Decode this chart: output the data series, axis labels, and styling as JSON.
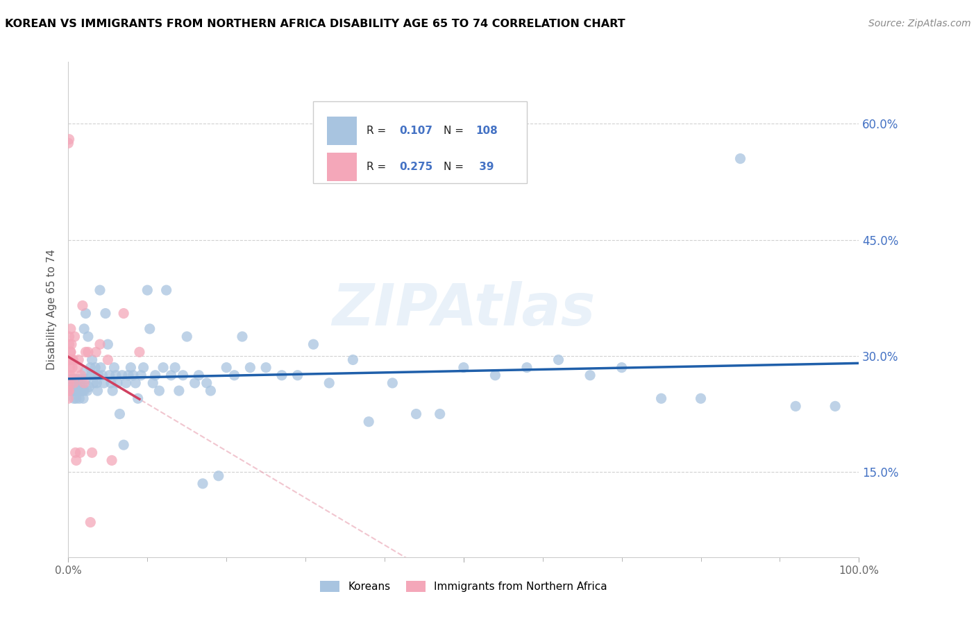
{
  "title": "KOREAN VS IMMIGRANTS FROM NORTHERN AFRICA DISABILITY AGE 65 TO 74 CORRELATION CHART",
  "source": "Source: ZipAtlas.com",
  "ylabel": "Disability Age 65 to 74",
  "xmin": 0.0,
  "xmax": 1.0,
  "ymin": 0.04,
  "ymax": 0.68,
  "yticks": [
    0.15,
    0.3,
    0.45,
    0.6
  ],
  "yticklabels": [
    "15.0%",
    "30.0%",
    "45.0%",
    "60.0%"
  ],
  "watermark": "ZIPAtlas",
  "color_korean": "#a8c4e0",
  "color_nafrica": "#f4a7b9",
  "trendline_korean_color": "#1f5faa",
  "trendline_nafrica_color": "#d04060",
  "trendline_nafrica_dash_color": "#e8a0b0",
  "label_korean": "Koreans",
  "label_nafrica": "Immigrants from Northern Africa",
  "korean_x": [
    0.002,
    0.003,
    0.004,
    0.005,
    0.006,
    0.007,
    0.008,
    0.009,
    0.01,
    0.011,
    0.012,
    0.013,
    0.014,
    0.015,
    0.016,
    0.017,
    0.018,
    0.019,
    0.02,
    0.021,
    0.022,
    0.022,
    0.024,
    0.025,
    0.026,
    0.028,
    0.029,
    0.03,
    0.032,
    0.033,
    0.034,
    0.036,
    0.037,
    0.038,
    0.04,
    0.041,
    0.043,
    0.045,
    0.047,
    0.05,
    0.052,
    0.054,
    0.056,
    0.058,
    0.06,
    0.062,
    0.065,
    0.068,
    0.07,
    0.073,
    0.076,
    0.079,
    0.082,
    0.085,
    0.088,
    0.092,
    0.095,
    0.1,
    0.103,
    0.107,
    0.11,
    0.115,
    0.12,
    0.124,
    0.13,
    0.135,
    0.14,
    0.145,
    0.15,
    0.16,
    0.165,
    0.17,
    0.175,
    0.18,
    0.19,
    0.2,
    0.21,
    0.22,
    0.23,
    0.25,
    0.27,
    0.29,
    0.31,
    0.33,
    0.36,
    0.38,
    0.41,
    0.44,
    0.47,
    0.5,
    0.54,
    0.58,
    0.62,
    0.66,
    0.7,
    0.75,
    0.8,
    0.85,
    0.92,
    0.97,
    0.003,
    0.005,
    0.007,
    0.009,
    0.012,
    0.015,
    0.018,
    0.02
  ],
  "korean_y": [
    0.265,
    0.255,
    0.27,
    0.26,
    0.255,
    0.245,
    0.27,
    0.255,
    0.245,
    0.26,
    0.27,
    0.255,
    0.245,
    0.26,
    0.255,
    0.27,
    0.26,
    0.245,
    0.335,
    0.28,
    0.27,
    0.355,
    0.255,
    0.325,
    0.26,
    0.285,
    0.275,
    0.295,
    0.265,
    0.275,
    0.285,
    0.265,
    0.255,
    0.275,
    0.385,
    0.285,
    0.275,
    0.265,
    0.355,
    0.315,
    0.275,
    0.265,
    0.255,
    0.285,
    0.275,
    0.265,
    0.225,
    0.275,
    0.185,
    0.265,
    0.275,
    0.285,
    0.275,
    0.265,
    0.245,
    0.275,
    0.285,
    0.385,
    0.335,
    0.265,
    0.275,
    0.255,
    0.285,
    0.385,
    0.275,
    0.285,
    0.255,
    0.275,
    0.325,
    0.265,
    0.275,
    0.135,
    0.265,
    0.255,
    0.145,
    0.285,
    0.275,
    0.325,
    0.285,
    0.285,
    0.275,
    0.275,
    0.315,
    0.265,
    0.295,
    0.215,
    0.265,
    0.225,
    0.225,
    0.285,
    0.275,
    0.285,
    0.295,
    0.275,
    0.285,
    0.245,
    0.245,
    0.555,
    0.235,
    0.235,
    0.255,
    0.255,
    0.255,
    0.255,
    0.255,
    0.255,
    0.255,
    0.255
  ],
  "nafrica_x": [
    0.001,
    0.001,
    0.001,
    0.002,
    0.002,
    0.003,
    0.003,
    0.004,
    0.004,
    0.005,
    0.005,
    0.006,
    0.007,
    0.008,
    0.009,
    0.01,
    0.012,
    0.013,
    0.015,
    0.016,
    0.018,
    0.02,
    0.022,
    0.025,
    0.028,
    0.03,
    0.035,
    0.04,
    0.05,
    0.055,
    0.07,
    0.09,
    0.0,
    0.0,
    0.0,
    0.001,
    0.001,
    0.002,
    0.003
  ],
  "nafrica_y": [
    0.255,
    0.265,
    0.325,
    0.275,
    0.285,
    0.305,
    0.335,
    0.315,
    0.275,
    0.295,
    0.285,
    0.295,
    0.265,
    0.325,
    0.175,
    0.165,
    0.285,
    0.295,
    0.175,
    0.275,
    0.365,
    0.265,
    0.305,
    0.305,
    0.085,
    0.175,
    0.305,
    0.315,
    0.295,
    0.165,
    0.355,
    0.305,
    0.245,
    0.255,
    0.575,
    0.315,
    0.58,
    0.295,
    0.305
  ]
}
